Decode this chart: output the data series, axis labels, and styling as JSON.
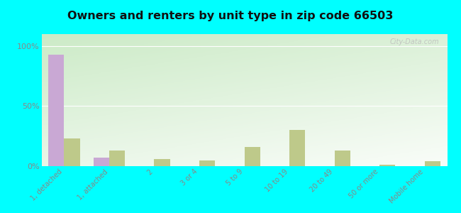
{
  "title": "Owners and renters by unit type in zip code 66503",
  "categories": [
    "1, detached",
    "1, attached",
    "2",
    "3 or 4",
    "5 to 9",
    "10 to 19",
    "20 to 49",
    "50 or more",
    "Mobile home"
  ],
  "owner_values": [
    93,
    7,
    0,
    0,
    0,
    0,
    0,
    0,
    0
  ],
  "renter_values": [
    23,
    13,
    6,
    5,
    16,
    30,
    13,
    1,
    4
  ],
  "owner_color": "#c9a8d4",
  "renter_color": "#bec98a",
  "background_color": "#00ffff",
  "yticks": [
    0,
    50,
    100
  ],
  "ylim": [
    0,
    110
  ],
  "watermark": "City-Data.com",
  "grad_top_left": "#c8e6c0",
  "grad_bottom_right": "#f8fdf5"
}
